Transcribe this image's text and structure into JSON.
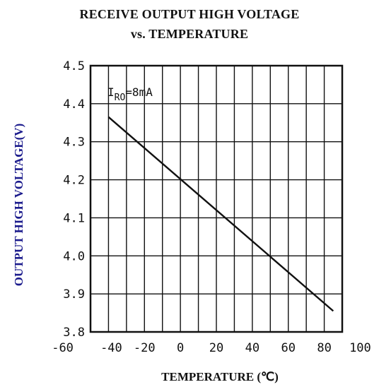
{
  "chart_data": {
    "type": "line",
    "title_line1": "RECEIVE OUTPUT HIGH VOLTAGE",
    "title_line2": "vs. TEMPERATURE",
    "xlabel": "TEMPERATURE (℃)",
    "ylabel": "OUTPUT HIGH VOLTAGE(V)",
    "xlim": [
      -50,
      90
    ],
    "ylim": [
      3.8,
      4.5
    ],
    "x_ticks": [
      {
        "v": -60,
        "label": "-60"
      },
      {
        "v": -40,
        "label": "-40"
      },
      {
        "v": -20,
        "label": "-20"
      },
      {
        "v": 0,
        "label": "0"
      },
      {
        "v": 20,
        "label": "20"
      },
      {
        "v": 40,
        "label": "40"
      },
      {
        "v": 60,
        "label": "60"
      },
      {
        "v": 80,
        "label": "80"
      },
      {
        "v": 100,
        "label": "100"
      }
    ],
    "y_ticks": [
      {
        "v": 4.5,
        "label": "4.5"
      },
      {
        "v": 4.4,
        "label": "4.4"
      },
      {
        "v": 4.3,
        "label": "4.3"
      },
      {
        "v": 4.2,
        "label": "4.2"
      },
      {
        "v": 4.1,
        "label": "4.1"
      },
      {
        "v": 4.0,
        "label": "4.0"
      },
      {
        "v": 3.9,
        "label": "3.9"
      },
      {
        "v": 3.8,
        "label": "3.8"
      }
    ],
    "grid": true,
    "annotation": {
      "main": "I",
      "sub": "RO",
      "rest": "=8mA"
    },
    "series": [
      {
        "x": [
          -40,
          85
        ],
        "y": [
          4.365,
          3.855
        ]
      }
    ]
  },
  "colors": {
    "line": "#111111",
    "grid": "#111111",
    "ylabel": "#1a1a8c",
    "text": "#111111"
  }
}
